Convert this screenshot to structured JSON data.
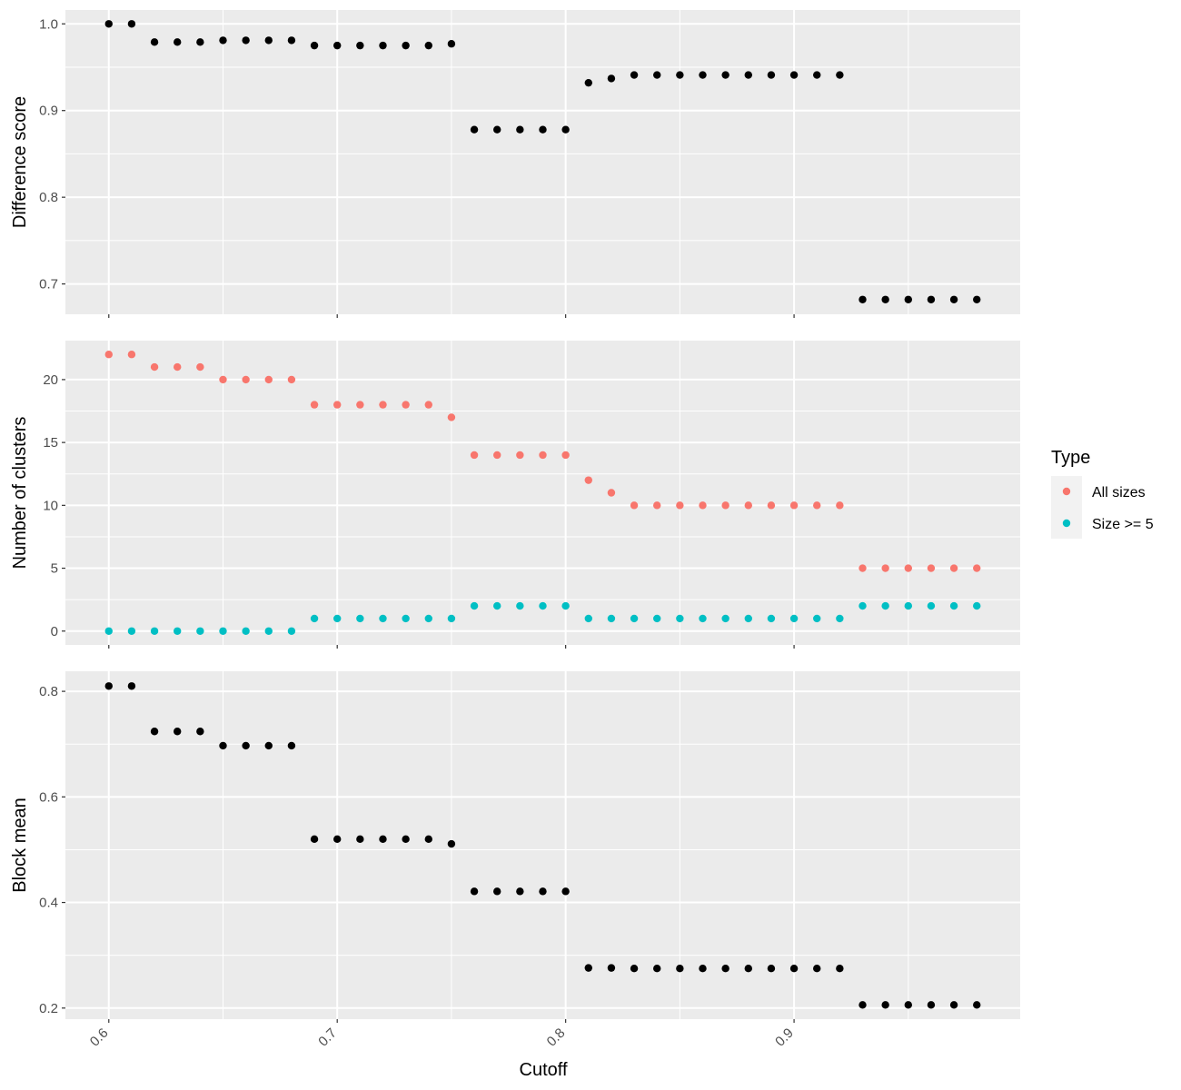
{
  "chart_data": {
    "type": "scatter",
    "shared_x": {
      "label": "Cutoff",
      "lim": [
        0.581,
        0.999
      ],
      "ticks": [
        0.6,
        0.7,
        0.8,
        0.9
      ],
      "tick_labels": [
        "0.6",
        "0.7",
        "0.8",
        "0.9"
      ],
      "minor_ticks": [
        0.65,
        0.75,
        0.85,
        0.95
      ]
    },
    "x": [
      0.6,
      0.61,
      0.62,
      0.63,
      0.64,
      0.65,
      0.66,
      0.67,
      0.68,
      0.69,
      0.7,
      0.71,
      0.72,
      0.73,
      0.74,
      0.75,
      0.76,
      0.77,
      0.78,
      0.79,
      0.8,
      0.81,
      0.82,
      0.83,
      0.84,
      0.85,
      0.86,
      0.87,
      0.88,
      0.89,
      0.9,
      0.91,
      0.92,
      0.93,
      0.94,
      0.95,
      0.96,
      0.97,
      0.98
    ],
    "grid": true,
    "panels": [
      {
        "ylabel": "Difference score",
        "ylim": [
          0.665,
          1.016
        ],
        "ticks": [
          0.7,
          0.8,
          0.9,
          1.0
        ],
        "tick_labels": [
          "0.7",
          "0.8",
          "0.9",
          "1.0"
        ],
        "minor_ticks": [
          0.75,
          0.85,
          0.95
        ],
        "series": [
          {
            "color": "#000000",
            "values": [
              1.0,
              1.0,
              0.979,
              0.979,
              0.979,
              0.981,
              0.981,
              0.981,
              0.981,
              0.975,
              0.975,
              0.975,
              0.975,
              0.975,
              0.975,
              0.977,
              0.878,
              0.878,
              0.878,
              0.878,
              0.878,
              0.932,
              0.937,
              0.941,
              0.941,
              0.941,
              0.941,
              0.941,
              0.941,
              0.941,
              0.941,
              0.941,
              0.941,
              0.682,
              0.682,
              0.682,
              0.682,
              0.682,
              0.682
            ]
          }
        ]
      },
      {
        "ylabel": "Number of clusters",
        "ylim": [
          -1.1,
          23.1
        ],
        "ticks": [
          0,
          5,
          10,
          15,
          20
        ],
        "tick_labels": [
          "0",
          "5",
          "10",
          "15",
          "20"
        ],
        "minor_ticks": [
          2.5,
          7.5,
          12.5,
          17.5
        ],
        "series": [
          {
            "name": "All sizes",
            "color": "#F8766D",
            "values": [
              22,
              22,
              21,
              21,
              21,
              20,
              20,
              20,
              20,
              18,
              18,
              18,
              18,
              18,
              18,
              17,
              14,
              14,
              14,
              14,
              14,
              12,
              11,
              10,
              10,
              10,
              10,
              10,
              10,
              10,
              10,
              10,
              10,
              5,
              5,
              5,
              5,
              5,
              5
            ]
          },
          {
            "name": "Size >= 5",
            "color": "#00BFC4",
            "values": [
              0,
              0,
              0,
              0,
              0,
              0,
              0,
              0,
              0,
              1,
              1,
              1,
              1,
              1,
              1,
              1,
              2,
              2,
              2,
              2,
              2,
              1,
              1,
              1,
              1,
              1,
              1,
              1,
              1,
              1,
              1,
              1,
              1,
              2,
              2,
              2,
              2,
              2,
              2
            ]
          }
        ]
      },
      {
        "ylabel": "Block mean",
        "ylim": [
          0.179,
          0.838
        ],
        "ticks": [
          0.2,
          0.4,
          0.6,
          0.8
        ],
        "tick_labels": [
          "0.2",
          "0.4",
          "0.6",
          "0.8"
        ],
        "minor_ticks": [
          0.3,
          0.5,
          0.7
        ],
        "series": [
          {
            "color": "#000000",
            "values": [
              0.81,
              0.81,
              0.724,
              0.724,
              0.724,
              0.697,
              0.697,
              0.697,
              0.697,
              0.52,
              0.52,
              0.52,
              0.52,
              0.52,
              0.52,
              0.511,
              0.421,
              0.421,
              0.421,
              0.421,
              0.421,
              0.276,
              0.276,
              0.275,
              0.275,
              0.275,
              0.275,
              0.275,
              0.275,
              0.275,
              0.275,
              0.275,
              0.275,
              0.206,
              0.206,
              0.206,
              0.206,
              0.206,
              0.206
            ]
          }
        ]
      }
    ],
    "legend": {
      "title": "Type",
      "position": "right",
      "entries": [
        {
          "label": "All sizes",
          "color": "#F8766D"
        },
        {
          "label": "Size >= 5",
          "color": "#00BFC4"
        }
      ]
    },
    "panel_background": "#EBEBEB",
    "grid_color": "#FFFFFF"
  }
}
